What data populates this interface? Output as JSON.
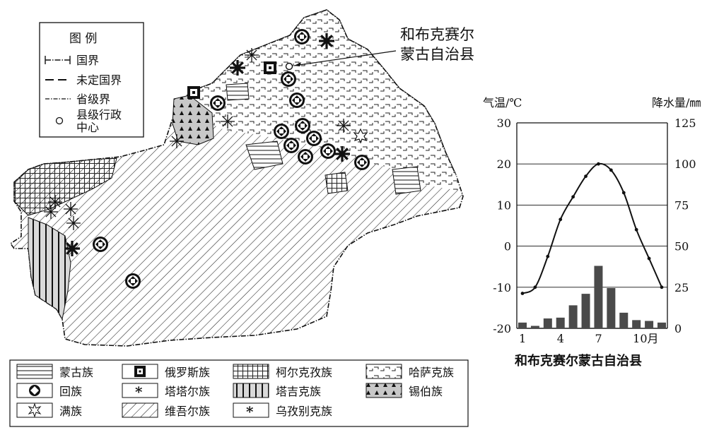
{
  "map": {
    "callout_line1": "和布克赛尔",
    "callout_line2": "蒙古自治县"
  },
  "legend_box": {
    "title": "图 例",
    "items": [
      {
        "label": "国界",
        "icon": "national-border-line"
      },
      {
        "label": "未定国界",
        "icon": "undetermined-border-line"
      },
      {
        "label": "省级界",
        "icon": "provincial-border-line"
      },
      {
        "label_line1": "县级行政",
        "label_line2": "中心",
        "icon": "county-center-circle"
      }
    ]
  },
  "ethnic_legend": [
    {
      "label": "蒙古族",
      "icon": "horizontal-hatch"
    },
    {
      "label": "俄罗斯族",
      "icon": "square-in-square"
    },
    {
      "label": "柯尔克孜族",
      "icon": "grid-hatch"
    },
    {
      "label": "哈萨克族",
      "icon": "dashed-hatch"
    },
    {
      "label": "回族",
      "icon": "diamond-in-circle"
    },
    {
      "label": "塔塔尔族",
      "icon": "asterisk"
    },
    {
      "label": "塔吉克族",
      "icon": "vertical-hatch"
    },
    {
      "label": "锡伯族",
      "icon": "triangle-hatch"
    },
    {
      "label": "满族",
      "icon": "star"
    },
    {
      "label": "维吾尔族",
      "icon": "diagonal-hatch"
    },
    {
      "label": "乌孜别克族",
      "icon": "star-asterisk"
    }
  ],
  "chart_data": {
    "type": "climate",
    "title": "和布克赛尔蒙古自治县",
    "left_axis_label": "气温/℃",
    "right_axis_label": "降水量/㎜",
    "left_ticks": [
      "30",
      "20",
      "10",
      "0",
      "-10",
      "-20"
    ],
    "right_ticks": [
      "125",
      "100",
      "75",
      "50",
      "25",
      "0"
    ],
    "x_tick_labels": [
      "1",
      "4",
      "7",
      "10月"
    ],
    "x_tick_months": [
      1,
      4,
      7,
      10
    ],
    "months": [
      1,
      2,
      3,
      4,
      5,
      6,
      7,
      8,
      9,
      10,
      11,
      12
    ],
    "temperature_c": [
      -11.5,
      -10,
      -2.5,
      6.5,
      12,
      17,
      20,
      18.5,
      13,
      4,
      -3,
      -10
    ],
    "precipitation_mm": [
      3.5,
      1.5,
      6,
      6.5,
      14,
      21,
      38,
      24.5,
      9.5,
      5,
      4.5,
      3.5
    ],
    "temp_range": [
      -20,
      30
    ],
    "precip_range": [
      0,
      125
    ],
    "gridlines": true
  }
}
